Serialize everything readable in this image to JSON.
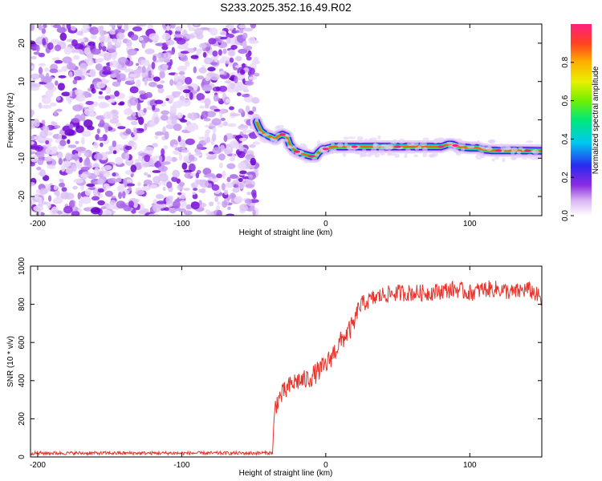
{
  "title": "S233.2025.352.16.49.R02",
  "chart_data": [
    {
      "type": "heatmap",
      "name": "spectrogram",
      "xlabel": "Height of straight line (km)",
      "ylabel": "Frequency (Hz)",
      "xlim": [
        -205,
        150
      ],
      "ylim": [
        -25,
        25
      ],
      "xticks": [
        -200,
        -100,
        0,
        100
      ],
      "yticks": [
        -20,
        -10,
        0,
        10,
        20
      ],
      "noise_region": {
        "x_start": -205,
        "x_end": -48
      },
      "signal_track": {
        "x": [
          -48,
          -47,
          -45,
          -42,
          -38,
          -35,
          -33,
          -30,
          -27,
          -25,
          -22,
          -20,
          -17,
          -15,
          -12,
          -10,
          -7,
          -5,
          -3,
          -2,
          0,
          2,
          5,
          10,
          20,
          40,
          60,
          80,
          85,
          88,
          92,
          100,
          105,
          110,
          115,
          130,
          150
        ],
        "freq": [
          -0.5,
          -1.5,
          -3,
          -3.8,
          -4.5,
          -5,
          -4.2,
          -3.8,
          -4.3,
          -6.5,
          -7.8,
          -8.3,
          -8.7,
          -9,
          -9.3,
          -9.5,
          -9.5,
          -8.5,
          -7.8,
          -7.6,
          -7.6,
          -7.3,
          -7,
          -7,
          -7,
          -7,
          -7,
          -7,
          -6.4,
          -6.4,
          -7,
          -7.3,
          -7.3,
          -7.8,
          -8,
          -8,
          -8.1
        ]
      },
      "colorbar": {
        "label": "Normalized spectral amplitude",
        "ticks": [
          0.0,
          0.2,
          0.4,
          0.6,
          0.8
        ],
        "range": [
          0,
          1
        ]
      }
    },
    {
      "type": "line",
      "name": "snr",
      "xlabel": "Height of straight line (km)",
      "ylabel": "SNR (10 * v/v)",
      "xlim": [
        -205,
        150
      ],
      "ylim": [
        0,
        1000
      ],
      "xticks": [
        -200,
        -100,
        0,
        100
      ],
      "yticks": [
        0,
        200,
        400,
        600,
        800,
        1000
      ],
      "color": "#e8332a",
      "series": [
        {
          "name": "SNR",
          "x": [
            -205,
            -150,
            -100,
            -50,
            -37,
            -36,
            -35,
            -33,
            -30,
            -25,
            -20,
            -15,
            -10,
            -5,
            0,
            5,
            10,
            15,
            20,
            22,
            25,
            30,
            40,
            50,
            60,
            70,
            80,
            90,
            100,
            110,
            120,
            130,
            140,
            145,
            150
          ],
          "y": [
            20,
            20,
            20,
            20,
            22,
            150,
            270,
            300,
            330,
            370,
            400,
            400,
            420,
            450,
            480,
            540,
            600,
            650,
            700,
            770,
            800,
            820,
            850,
            860,
            860,
            860,
            870,
            880,
            860,
            880,
            880,
            860,
            880,
            860,
            820
          ]
        }
      ]
    }
  ]
}
